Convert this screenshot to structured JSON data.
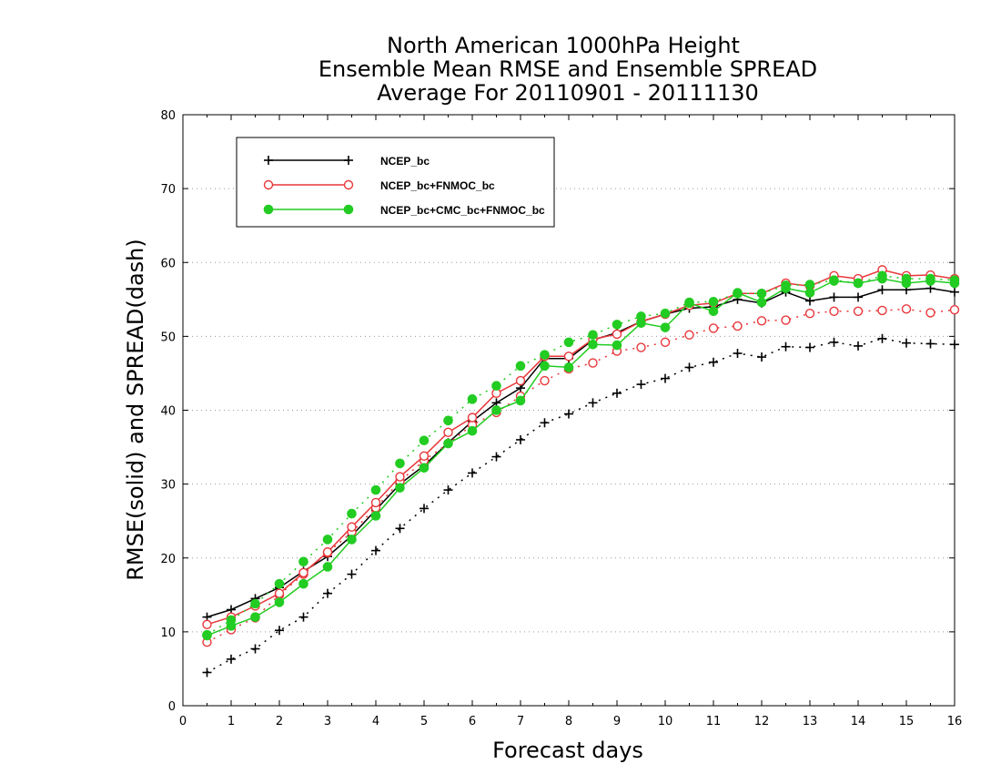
{
  "chart_data": {
    "type": "line",
    "title": [
      "North American 1000hPa Height",
      "Ensemble Mean RMSE and Ensemble SPREAD",
      "Average For 20110901 - 20111130"
    ],
    "xlabel": "Forecast days",
    "ylabel": "RMSE(solid) and SPREAD(dash)",
    "xlim": [
      0,
      16
    ],
    "ylim": [
      0,
      80
    ],
    "xticks": [
      "0",
      "1",
      "2",
      "3",
      "4",
      "5",
      "6",
      "7",
      "8",
      "9",
      "10",
      "11",
      "12",
      "13",
      "14",
      "15",
      "16"
    ],
    "yticks": [
      "0",
      "10",
      "20",
      "30",
      "40",
      "50",
      "60",
      "70",
      "80"
    ],
    "grid": "horizontal dotted",
    "legend_position": "top-left",
    "x": [
      0.5,
      1,
      1.5,
      2,
      2.5,
      3,
      3.5,
      4,
      4.5,
      5,
      5.5,
      6,
      6.5,
      7,
      7.5,
      8,
      8.5,
      9,
      9.5,
      10,
      10.5,
      11,
      11.5,
      12,
      12.5,
      13,
      13.5,
      14,
      14.5,
      15,
      15.5,
      16
    ],
    "series": [
      {
        "name": "NCEP_bc",
        "color": "#000000",
        "marker": "plus",
        "rmse": [
          12.0,
          13.0,
          14.5,
          16.0,
          18.2,
          20.2,
          23.0,
          26.5,
          30.0,
          32.5,
          35.6,
          38.5,
          41.0,
          43.0,
          47.0,
          47.0,
          49.5,
          50.5,
          52.0,
          53.0,
          53.8,
          54.0,
          55.0,
          54.5,
          56.0,
          54.8,
          55.3,
          55.3,
          56.3,
          56.3,
          56.5,
          56.0
        ],
        "spread": [
          4.5,
          6.3,
          7.7,
          10.2,
          12.0,
          15.2,
          17.8,
          21.0,
          24.0,
          26.7,
          29.2,
          31.5,
          33.7,
          36.0,
          38.3,
          39.5,
          41.0,
          42.3,
          43.5,
          44.3,
          45.8,
          46.5,
          47.7,
          47.2,
          48.6,
          48.5,
          49.2,
          48.7,
          49.7,
          49.1,
          49.0,
          48.9
        ]
      },
      {
        "name": "NCEP_bc+FNMOC_bc",
        "color": "#e8363a",
        "marker": "open-circle",
        "rmse": [
          11.0,
          12.0,
          13.5,
          15.2,
          18.0,
          20.8,
          24.2,
          27.5,
          31.0,
          33.8,
          37.0,
          39.0,
          42.3,
          44.0,
          47.3,
          47.3,
          49.6,
          50.3,
          52.0,
          53.0,
          54.2,
          54.5,
          55.8,
          55.8,
          57.2,
          56.8,
          58.2,
          57.8,
          59.0,
          58.2,
          58.3,
          57.8
        ],
        "spread": [
          8.6,
          10.3,
          11.9,
          15.0,
          17.8,
          20.7,
          23.5,
          26.8,
          30.4,
          33.2,
          35.5,
          38.0,
          39.7,
          41.9,
          44.0,
          45.6,
          46.4,
          48.0,
          48.5,
          49.2,
          50.2,
          51.1,
          51.4,
          52.1,
          52.2,
          53.1,
          53.4,
          53.4,
          53.5,
          53.7,
          53.2,
          53.6
        ]
      },
      {
        "name": "NCEP_bc+CMC_bc+FNMOC_bc",
        "color": "#22cc22",
        "marker": "filled-circle",
        "rmse": [
          9.5,
          10.8,
          12.0,
          14.0,
          16.5,
          18.8,
          22.5,
          25.7,
          29.5,
          32.2,
          35.5,
          37.2,
          40.0,
          41.3,
          46.0,
          45.8,
          48.9,
          48.8,
          51.8,
          51.2,
          54.5,
          53.4,
          55.9,
          54.6,
          56.5,
          55.9,
          57.5,
          57.2,
          57.8,
          57.2,
          57.5,
          57.2
        ],
        "spread": [
          9.6,
          11.6,
          13.8,
          16.5,
          19.5,
          22.5,
          26.0,
          29.2,
          32.8,
          35.9,
          38.6,
          41.5,
          43.3,
          46.0,
          47.5,
          49.2,
          50.2,
          51.6,
          52.7,
          53.1,
          54.6,
          54.7,
          55.8,
          55.8,
          56.9,
          57.0,
          57.6,
          57.2,
          58.2,
          57.8,
          57.8,
          57.6
        ]
      }
    ]
  }
}
